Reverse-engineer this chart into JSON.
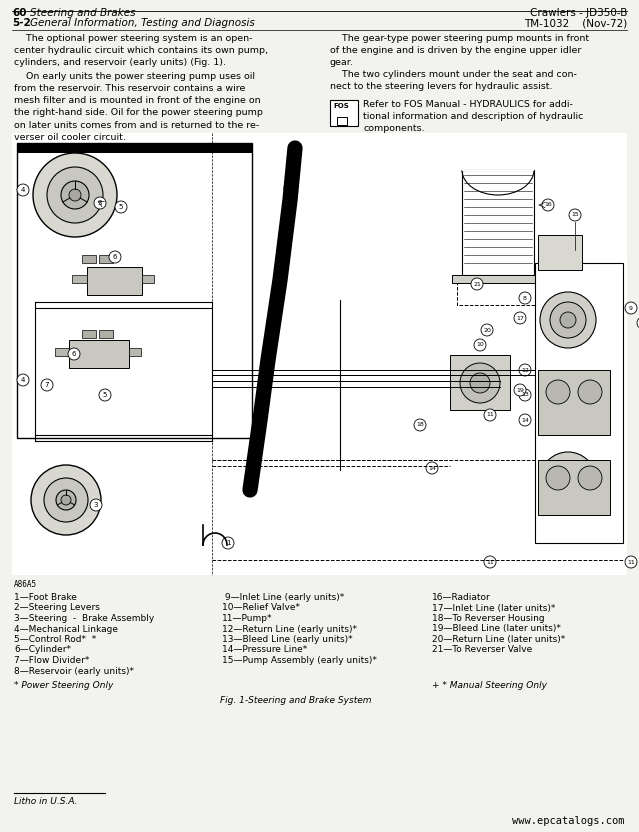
{
  "page_header_left_line1_num": "60",
  "page_header_left_line1_txt": "Steering and Brakes",
  "page_header_left_line2_num": "5-2",
  "page_header_left_line2_txt": "General Information, Testing and Diagnosis",
  "page_header_right_line1": "Crawlers - JD350-B",
  "page_header_right_line2": "TM-1032    (Nov-72)",
  "para1_col1": "    The optional power steering system is an open-\ncenter hydraulic circuit which contains its own pump,\ncylinders, and reservoir (early units) (Fig. 1).",
  "para2_col1": "    On early units the power steering pump uses oil\nfrom the reservoir. This reservoir contains a wire\nmesh filter and is mounted in front of the engine on\nthe right-hand side. Oil for the power steering pump\non later units comes from and is returned to the re-\nverser oil cooler circuit.",
  "para1_col2": "    The gear-type power steering pump mounts in front\nof the engine and is driven by the engine upper idler\ngear.",
  "para2_col2": "    The two cylinders mount under the seat and con-\nnect to the steering levers for hydraulic assist.",
  "fos_text": "Refer to FOS Manual - HYDRAULICS for addi-\ntional information and description of hydraulic\ncomponents.",
  "legend_col1": [
    "1—Foot Brake",
    "2—Steering Levers",
    "3—Steering  -  Brake Assembly",
    "4—Mechanical Linkage",
    "5—Control Rod*  *",
    "6—Cylinder*",
    "7—Flow Divider*",
    "8—Reservoir (early units)*"
  ],
  "legend_col2": [
    " 9—Inlet Line (early units)*",
    "10—Relief Valve*",
    "11—Pump*",
    "12—Return Line (early units)*",
    "13—Bleed Line (early units)*",
    "14—Pressure Line*",
    "15—Pump Assembly (early units)*"
  ],
  "legend_col3": [
    "16—Radiator",
    "17—Inlet Line (later units)*",
    "18—To Reverser Housing",
    "19—Bleed Line (later units)*",
    "20—Return Line (later units)*",
    "21—To Reverser Valve"
  ],
  "footnote1": "* Power Steering Only",
  "footnote2": "+ * Manual Steering Only",
  "fig_caption": "Fig. 1-Steering and Brake System",
  "part_number": "A86A5",
  "litho": "Litho in U.S.A.",
  "website": "www.epcatalogs.com",
  "bg_color": "#f2f2ee",
  "diagram_bg": "#e8e8e0",
  "line_gray": "#888880"
}
